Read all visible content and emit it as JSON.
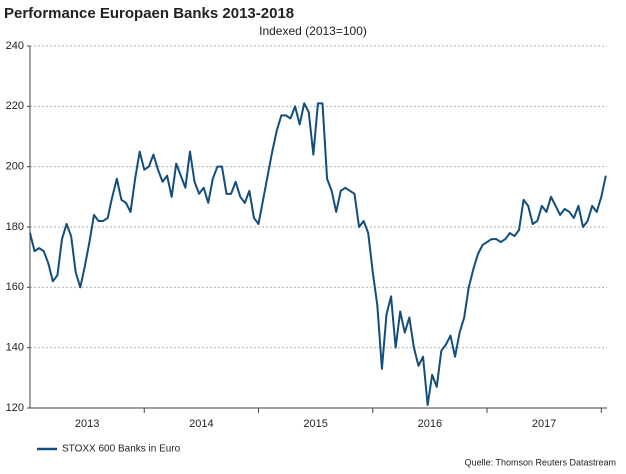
{
  "chart_data": {
    "type": "line",
    "title": "Performance Europaen Banks 2013-2018",
    "subtitle": "Indexed (2013=100)",
    "source": "Quelle: Thomson Reuters Datastream",
    "x": [
      2013,
      2013.04,
      2013.08,
      2013.12,
      2013.16,
      2013.2,
      2013.24,
      2013.28,
      2013.32,
      2013.36,
      2013.4,
      2013.44,
      2013.48,
      2013.52,
      2013.56,
      2013.6,
      2013.64,
      2013.68,
      2013.72,
      2013.76,
      2013.8,
      2013.84,
      2013.88,
      2013.92,
      2013.96,
      2014,
      2014.04,
      2014.08,
      2014.12,
      2014.16,
      2014.2,
      2014.24,
      2014.28,
      2014.32,
      2014.36,
      2014.4,
      2014.44,
      2014.48,
      2014.52,
      2014.56,
      2014.6,
      2014.64,
      2014.68,
      2014.72,
      2014.76,
      2014.8,
      2014.84,
      2014.88,
      2014.92,
      2014.96,
      2015,
      2015.04,
      2015.08,
      2015.12,
      2015.16,
      2015.2,
      2015.24,
      2015.28,
      2015.32,
      2015.36,
      2015.4,
      2015.44,
      2015.48,
      2015.52,
      2015.56,
      2015.6,
      2015.64,
      2015.68,
      2015.72,
      2015.76,
      2015.8,
      2015.84,
      2015.88,
      2015.92,
      2015.96,
      2016,
      2016.04,
      2016.08,
      2016.12,
      2016.16,
      2016.2,
      2016.24,
      2016.28,
      2016.32,
      2016.36,
      2016.4,
      2016.44,
      2016.48,
      2016.52,
      2016.56,
      2016.6,
      2016.64,
      2016.68,
      2016.72,
      2016.76,
      2016.8,
      2016.84,
      2016.88,
      2016.92,
      2016.96,
      2017,
      2017.04,
      2017.08,
      2017.12,
      2017.16,
      2017.2,
      2017.24,
      2017.28,
      2017.32,
      2017.36,
      2017.4,
      2017.44,
      2017.48,
      2017.52,
      2017.56,
      2017.6,
      2017.64,
      2017.68,
      2017.72,
      2017.76,
      2017.8,
      2017.84,
      2017.88,
      2017.92,
      2017.96,
      2018,
      2018.04
    ],
    "series": [
      {
        "name": "STOXX 600 Banks in Euro",
        "color": "#134d7c",
        "values": [
          178,
          172,
          173,
          172,
          168,
          162,
          164,
          176,
          181,
          177,
          165,
          160,
          167,
          175,
          184,
          182,
          182,
          183,
          190,
          196,
          189,
          188,
          185,
          196,
          205,
          199,
          200,
          204,
          199,
          195,
          197,
          190,
          201,
          197,
          193,
          205,
          195,
          191,
          193,
          188,
          196,
          200,
          200,
          191,
          191,
          195,
          190,
          188,
          192,
          183,
          181,
          189,
          197,
          205,
          212,
          217,
          217,
          216,
          220,
          214,
          221,
          218,
          204,
          221,
          221,
          196,
          192,
          185,
          192,
          193,
          192,
          191,
          180,
          182,
          178,
          165,
          154,
          133,
          151,
          157,
          140,
          152,
          145,
          150,
          140,
          134,
          137,
          121,
          131,
          127,
          139,
          141,
          144,
          137,
          145,
          150,
          160,
          166,
          171,
          174,
          175,
          176,
          176,
          175,
          176,
          178,
          177,
          179,
          189,
          187,
          181,
          182,
          187,
          185,
          190,
          187,
          184,
          186,
          185,
          183,
          187,
          180,
          182,
          187,
          185,
          190,
          197
        ]
      }
    ],
    "xlim": [
      2013,
      2018.05
    ],
    "xticks": [
      {
        "value": 2013.5,
        "label": "2013"
      },
      {
        "value": 2014.5,
        "label": "2014"
      },
      {
        "value": 2015.5,
        "label": "2015"
      },
      {
        "value": 2016.5,
        "label": "2016"
      },
      {
        "value": 2017.5,
        "label": "2017"
      }
    ],
    "ylim": [
      120,
      240
    ],
    "yticks": [
      120,
      140,
      160,
      180,
      200,
      220,
      240
    ],
    "grid": true,
    "legend": "bottom-left"
  }
}
